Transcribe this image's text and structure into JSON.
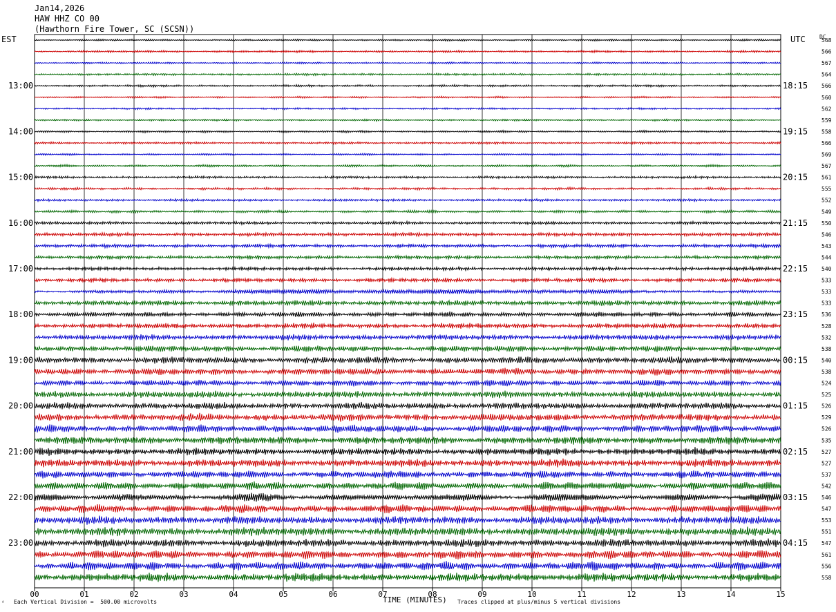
{
  "header": {
    "date": "Jan14,2026",
    "station": "HAW HHZ CO 00",
    "location": "(Hawthorn Fire Tower, SC (SCSN))"
  },
  "left_tz": "EST",
  "right_tz": "UTC",
  "dc_label": "DC",
  "footer": {
    "scale_note": "Each Vertical Division =  500.00 microvolts",
    "clip_note": "Traces clipped at plus/minus 5 vertical divisions",
    "mark": "ᴬ"
  },
  "colors": {
    "trace_cycle": [
      "#000000",
      "#cc0000",
      "#0000cc",
      "#006600"
    ],
    "grid": "#000000",
    "background": "#ffffff"
  },
  "chart_data": {
    "type": "line",
    "title": "",
    "xlabel": "TIME (MINUTES)",
    "ylabel": "",
    "xlim": [
      0,
      15
    ],
    "x_ticks": [
      "00",
      "01",
      "02",
      "03",
      "04",
      "05",
      "06",
      "07",
      "08",
      "09",
      "10",
      "11",
      "12",
      "13",
      "14",
      "15"
    ],
    "rows_per_hour": 4,
    "row_count": 48,
    "left_hour_labels": [
      "13:00",
      "14:00",
      "15:00",
      "16:00",
      "17:00",
      "18:00",
      "19:00",
      "20:00",
      "21:00",
      "22:00",
      "23:00"
    ],
    "right_hour_labels": [
      "18:15",
      "19:15",
      "20:15",
      "21:15",
      "22:15",
      "23:15",
      "00:15",
      "01:15",
      "02:15",
      "03:15",
      "04:15"
    ],
    "first_labeled_row": 4,
    "dc_offsets": [
      568,
      566,
      567,
      564,
      566,
      560,
      562,
      559,
      558,
      566,
      569,
      567,
      561,
      555,
      552,
      549,
      550,
      546,
      543,
      544,
      540,
      533,
      533,
      533,
      536,
      528,
      532,
      538,
      540,
      538,
      524,
      525,
      526,
      529,
      526,
      535,
      527,
      527,
      537,
      542,
      546,
      547,
      553,
      551,
      547,
      561,
      556,
      558
    ],
    "relative_amplitude": [
      0.15,
      0.18,
      0.15,
      0.18,
      0.18,
      0.15,
      0.15,
      0.15,
      0.18,
      0.18,
      0.15,
      0.18,
      0.2,
      0.2,
      0.2,
      0.22,
      0.25,
      0.3,
      0.3,
      0.3,
      0.3,
      0.35,
      0.35,
      0.45,
      0.4,
      0.45,
      0.45,
      0.5,
      0.55,
      0.55,
      0.5,
      0.55,
      0.55,
      0.6,
      0.6,
      0.65,
      0.6,
      0.65,
      0.6,
      0.65,
      0.6,
      0.65,
      0.65,
      0.7,
      0.65,
      0.7,
      0.7,
      0.7
    ]
  }
}
